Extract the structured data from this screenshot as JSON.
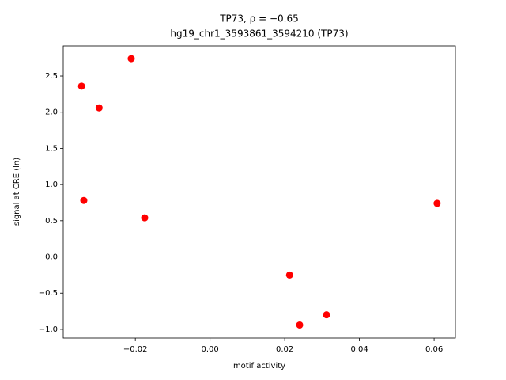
{
  "chart_data": {
    "type": "scatter",
    "title": "TP73, ρ = −0.65",
    "subtitle": "hg19_chr1_3593861_3594210 (TP73)",
    "x_label": "motif activity",
    "y_label": "signal at CRE (ln)",
    "color": "#ff0000",
    "series": [
      {
        "x": [
          -0.0344,
          -0.0211,
          -0.0297,
          -0.0338,
          -0.0175,
          0.0213,
          0.024,
          0.0312,
          0.0608
        ],
        "values": [
          2.36,
          2.74,
          2.06,
          0.78,
          0.54,
          -0.25,
          -0.94,
          -0.8,
          0.74
        ]
      }
    ],
    "xlim": [
      -0.0393,
      0.0657
    ],
    "ylim": [
      -1.121,
      2.916
    ],
    "xticks": [
      {
        "value": -0.02,
        "label": "−0.02"
      },
      {
        "value": 0,
        "label": "0.00"
      },
      {
        "value": 0.02,
        "label": "0.02"
      },
      {
        "value": 0.04,
        "label": "0.04"
      },
      {
        "value": 0.06,
        "label": "0.06"
      }
    ],
    "yticks": [
      {
        "value": -1,
        "label": "−1.0"
      },
      {
        "value": -0.5,
        "label": "−0.5"
      },
      {
        "value": 0,
        "label": "0.0"
      },
      {
        "value": 0.5,
        "label": "0.5"
      },
      {
        "value": 1,
        "label": "1.0"
      },
      {
        "value": 1.5,
        "label": "1.5"
      },
      {
        "value": 2,
        "label": "2.0"
      },
      {
        "value": 2.5,
        "label": "2.5"
      }
    ],
    "grid": false
  }
}
